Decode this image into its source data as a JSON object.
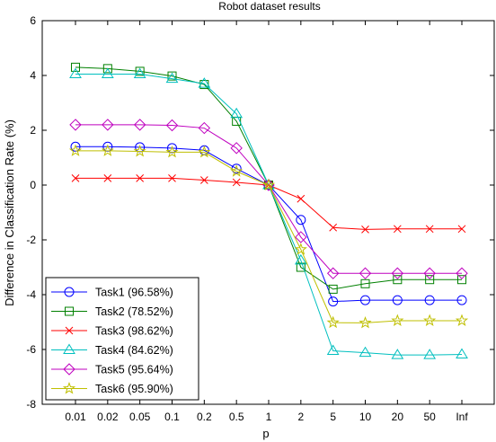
{
  "chart_data": {
    "type": "line",
    "title": "Robot dataset results",
    "xlabel": "p",
    "ylabel": "Difference in Classification Rate (%)",
    "categories": [
      "0.01",
      "0.02",
      "0.05",
      "0.1",
      "0.2",
      "0.5",
      "1",
      "2",
      "5",
      "10",
      "20",
      "50",
      "Inf"
    ],
    "ylim": [
      -8,
      6
    ],
    "yticks": [
      "-8",
      "-6",
      "-4",
      "-2",
      "0",
      "2",
      "4",
      "6"
    ],
    "grid": false,
    "legend_position": "bottom-left",
    "series": [
      {
        "name": "Task1 (96.58%)",
        "color": "#0000ff",
        "marker": "circle",
        "values": [
          1.4,
          1.4,
          1.38,
          1.35,
          1.27,
          0.6,
          0.0,
          -1.27,
          -4.25,
          -4.2,
          -4.2,
          -4.2,
          -4.2
        ]
      },
      {
        "name": "Task2 (78.52%)",
        "color": "#008000",
        "marker": "square",
        "values": [
          4.3,
          4.25,
          4.15,
          3.98,
          3.67,
          2.33,
          0.0,
          -3.0,
          -3.8,
          -3.6,
          -3.45,
          -3.45,
          -3.45
        ]
      },
      {
        "name": "Task3 (98.62%)",
        "color": "#ff0000",
        "marker": "x",
        "values": [
          0.25,
          0.25,
          0.25,
          0.25,
          0.18,
          0.1,
          0.0,
          -0.5,
          -1.55,
          -1.62,
          -1.6,
          -1.6,
          -1.6
        ]
      },
      {
        "name": "Task4 (84.62%)",
        "color": "#00bfbf",
        "marker": "triangle",
        "values": [
          4.05,
          4.05,
          4.05,
          3.88,
          3.7,
          2.6,
          0.0,
          -2.75,
          -6.05,
          -6.12,
          -6.2,
          -6.2,
          -6.18
        ]
      },
      {
        "name": "Task5 (95.64%)",
        "color": "#bf00bf",
        "marker": "diamond",
        "values": [
          2.2,
          2.2,
          2.2,
          2.18,
          2.08,
          1.35,
          0.0,
          -1.9,
          -3.22,
          -3.22,
          -3.22,
          -3.22,
          -3.22
        ]
      },
      {
        "name": "Task6 (95.90%)",
        "color": "#bfbf00",
        "marker": "star",
        "values": [
          1.25,
          1.25,
          1.23,
          1.2,
          1.2,
          0.5,
          0.0,
          -2.35,
          -5.02,
          -5.03,
          -4.95,
          -4.95,
          -4.95
        ]
      }
    ]
  }
}
